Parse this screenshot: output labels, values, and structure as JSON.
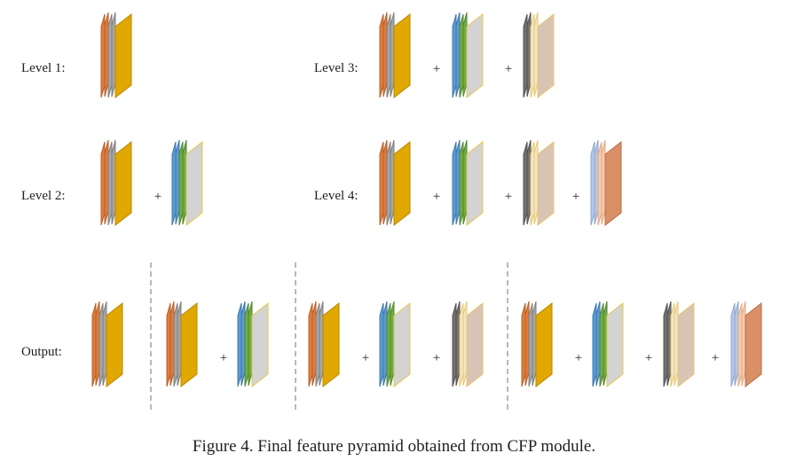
{
  "labels": {
    "level1": "Level 1:",
    "level2": "Level 2:",
    "level3": "Level 3:",
    "level4": "Level 4:",
    "output": "Output:"
  },
  "plus_symbol": "+",
  "caption": "Figure 4. Final feature pyramid obtained from CFP module.",
  "stack_styles": {
    "A": {
      "name": "orange-gray-gold",
      "colors": [
        "#E07B39",
        "#A6A6A6",
        "#E0A800"
      ],
      "edges": [
        "#b8602a",
        "#7f7f7f",
        "#b98700"
      ]
    },
    "B": {
      "name": "blue-green-gray",
      "colors": [
        "#5B9BD5",
        "#70AD47",
        "#D3D3D3"
      ],
      "edges": [
        "#3f78ad",
        "#4f8731",
        "#e8c84a"
      ]
    },
    "C": {
      "name": "gray-cream-tan",
      "colors": [
        "#767171",
        "#F2E6C9",
        "#D9C3B5"
      ],
      "edges": [
        "#555151",
        "#e6c86a",
        "#e6c86a"
      ]
    },
    "D": {
      "name": "lightblue-peach-brown",
      "colors": [
        "#B4C7E7",
        "#F8CBAD",
        "#D99066"
      ],
      "edges": [
        "#8ea6cc",
        "#e0a983",
        "#b56e49"
      ]
    }
  },
  "groups": {
    "level1": [
      "A"
    ],
    "level2": [
      "A",
      "B"
    ],
    "level3": [
      "A",
      "B",
      "C"
    ],
    "level4": [
      "A",
      "B",
      "C",
      "D"
    ],
    "output_1": [
      "A"
    ],
    "output_2": [
      "A",
      "B"
    ],
    "output_3": [
      "A",
      "B",
      "C"
    ],
    "output_4": [
      "A",
      "B",
      "C",
      "D"
    ]
  }
}
